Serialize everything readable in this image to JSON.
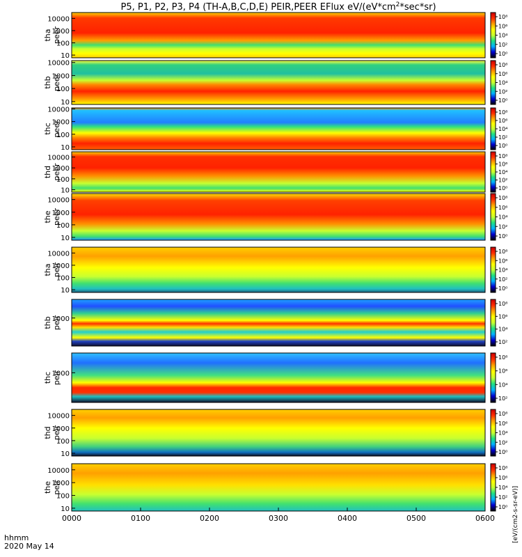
{
  "chart_data": {
    "type": "heatmap",
    "title": "P5, P1, P2, P3, P4 (TH-A,B,C,D,E) PEIR,PEER EFlux eV/(eV*cm²*sec*sr)",
    "title_parts": [
      "P5, P1, P2, P3, P4 (TH-A,B,C,D,E) PEIR,PEER EFlux eV/(eV*cm",
      "2",
      "*sec*sr)"
    ],
    "x_label_line1": "hhmm",
    "x_label_line2": "2020 May 14",
    "x_ticks": [
      "0000",
      "0100",
      "0200",
      "0300",
      "0400",
      "0500",
      "0600"
    ],
    "xlim_minutes": [
      0,
      360
    ],
    "colorbar_label": "[eV/(cm2-s-sr-eV)]",
    "colorbar_range_log10": [
      1,
      8
    ],
    "colorscale": [
      "#000000",
      "#0000d0",
      "#00b0ff",
      "#20e080",
      "#c8ff30",
      "#ffff00",
      "#ffa000",
      "#ff2a00",
      "#c80000"
    ],
    "panels": [
      {
        "id": "tha-peer",
        "label_top": "tha",
        "label_bottom": "peer",
        "ylim": [
          6,
          30000
        ],
        "yticks": [
          "10",
          "100",
          "1000",
          "10000"
        ],
        "cbar_ticks": [
          "10⁸",
          "10⁶",
          "10⁴",
          "10²",
          "10⁰"
        ]
      },
      {
        "id": "thb-peer",
        "label_top": "thb",
        "label_bottom": "peer",
        "ylim": [
          6,
          14000
        ],
        "yticks": [
          "10",
          "100",
          "1000",
          "10000"
        ],
        "cbar_ticks": [
          "10⁸",
          "10⁶",
          "10⁴",
          "10²",
          "10⁰"
        ]
      },
      {
        "id": "thc-peer",
        "label_top": "thc",
        "label_bottom": "peer",
        "ylim": [
          6,
          12000
        ],
        "yticks": [
          "10",
          "100",
          "1000",
          "10000"
        ],
        "cbar_ticks": [
          "10⁸",
          "10⁶",
          "10⁴",
          "10²",
          "10⁰"
        ]
      },
      {
        "id": "thd-peer",
        "label_top": "thd",
        "label_bottom": "peer",
        "ylim": [
          6,
          30000
        ],
        "yticks": [
          "10",
          "100",
          "1000",
          "10000"
        ],
        "cbar_ticks": [
          "10⁸",
          "10⁶",
          "10⁴",
          "10²",
          "10⁰"
        ]
      },
      {
        "id": "the-peer",
        "label_top": "the",
        "label_bottom": "peer",
        "ylim": [
          6,
          30000
        ],
        "yticks": [
          "10",
          "100",
          "1000",
          "10000"
        ],
        "cbar_ticks": [
          "10⁸",
          "10⁶",
          "10⁴",
          "10²",
          "10⁰"
        ]
      },
      {
        "id": "tha-peir",
        "label_top": "tha",
        "label_bottom": "peir",
        "ylim": [
          6,
          30000
        ],
        "yticks": [
          "10",
          "100",
          "1000",
          "10000"
        ],
        "cbar_ticks": [
          "10⁸",
          "10⁶",
          "10⁴",
          "10²",
          "10⁰"
        ]
      },
      {
        "id": "thb-peir",
        "label_top": "thb",
        "label_bottom": "peir",
        "ylim": [
          6,
          30000
        ],
        "yticks": [
          "1000"
        ],
        "cbar_ticks": [
          "10⁸",
          "10⁶",
          "10⁴",
          "10²"
        ]
      },
      {
        "id": "thc-peir",
        "label_top": "thc",
        "label_bottom": "peir",
        "ylim": [
          6,
          30000
        ],
        "yticks": [
          "1000"
        ],
        "cbar_ticks": [
          "10⁸",
          "10⁶",
          "10⁴",
          "10²"
        ]
      },
      {
        "id": "thd-peir",
        "label_top": "thd",
        "label_bottom": "peir",
        "ylim": [
          6,
          30000
        ],
        "yticks": [
          "10",
          "100",
          "1000",
          "10000"
        ],
        "cbar_ticks": [
          "10⁸",
          "10⁶",
          "10⁴",
          "10²",
          "10⁰"
        ]
      },
      {
        "id": "the-peir",
        "label_top": "the",
        "label_bottom": "peir",
        "ylim": [
          6,
          30000
        ],
        "yticks": [
          "10",
          "100",
          "1000",
          "10000"
        ],
        "cbar_ticks": [
          "10⁸",
          "10⁶",
          "10⁴",
          "10²",
          "10⁰"
        ]
      }
    ],
    "grid": false,
    "legend": "colorbar-right"
  }
}
